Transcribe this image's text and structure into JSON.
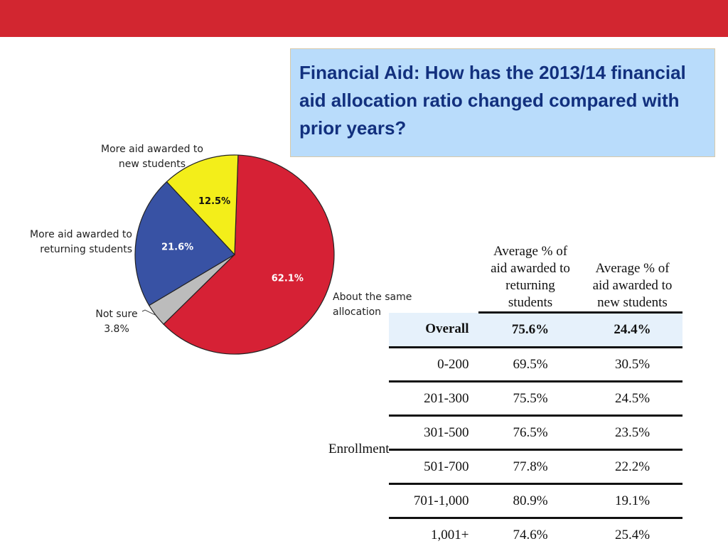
{
  "colors": {
    "band": "#d22630",
    "title_bg": "#b9dcfb",
    "title_text": "#12307e",
    "overall_row_bg": "#e6f1fb",
    "rule": "#111111"
  },
  "slide": {
    "title": "Financial Aid: How has the 2013/14 financial aid allocation ratio changed compared with prior years?"
  },
  "chart_data": {
    "type": "pie",
    "slices": [
      {
        "label_lines": [
          "About the same",
          "allocation"
        ],
        "value": 62.1,
        "value_label": "62.1%",
        "color": "#d62135"
      },
      {
        "label_lines": [
          "Not sure",
          "3.8%"
        ],
        "value": 3.8,
        "value_label": "",
        "color": "#bcbcbc"
      },
      {
        "label_lines": [
          "More aid awarded to",
          "returning students"
        ],
        "value": 21.6,
        "value_label": "21.6%",
        "color": "#3852a4"
      },
      {
        "label_lines": [
          "More aid awarded to",
          "new students"
        ],
        "value": 12.5,
        "value_label": "12.5%",
        "color": "#f3ee1a"
      }
    ]
  },
  "table": {
    "headers": {
      "returning": [
        "Average % of",
        "aid awarded to",
        "returning",
        "students"
      ],
      "new": [
        "Average % of",
        "aid awarded to",
        "new students"
      ]
    },
    "overall": {
      "label": "Overall",
      "returning": "75.6%",
      "new": "24.4%"
    },
    "group_label": "Enrollment",
    "rows": [
      {
        "range": "0-200",
        "returning": "69.5%",
        "new": "30.5%"
      },
      {
        "range": "201-300",
        "returning": "75.5%",
        "new": "24.5%"
      },
      {
        "range": "301-500",
        "returning": "76.5%",
        "new": "23.5%"
      },
      {
        "range": "501-700",
        "returning": "77.8%",
        "new": "22.2%"
      },
      {
        "range": "701-1,000",
        "returning": "80.9%",
        "new": "19.1%"
      },
      {
        "range": "1,001+",
        "returning": "74.6%",
        "new": "25.4%"
      }
    ]
  }
}
